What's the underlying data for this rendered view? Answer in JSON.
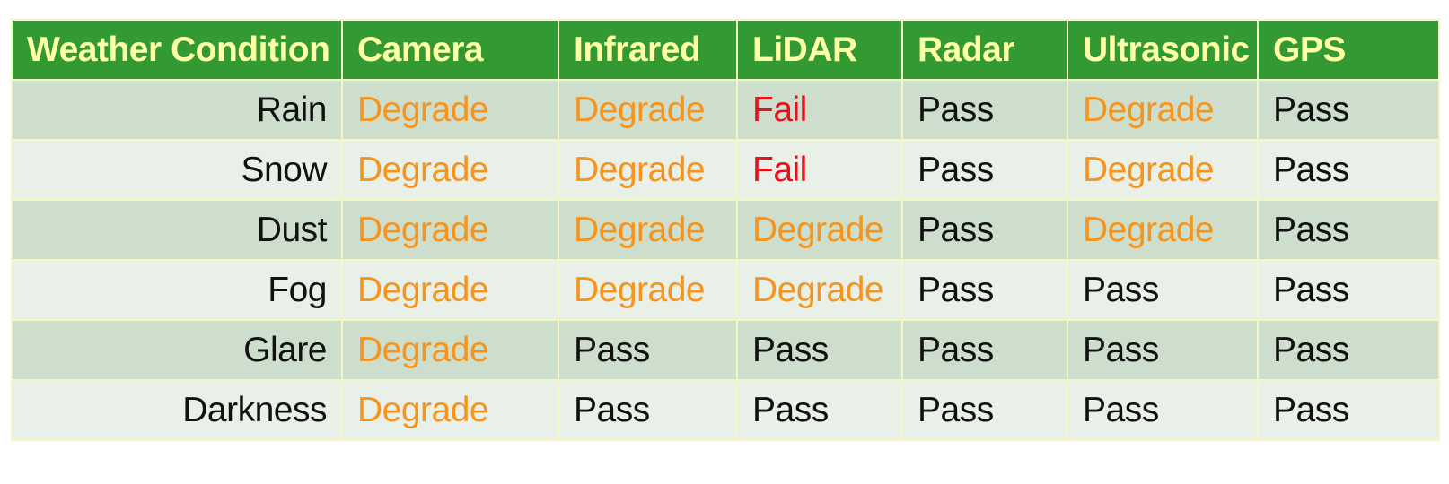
{
  "table": {
    "headers": [
      "Weather Condition",
      "Camera",
      "Infrared",
      "LiDAR",
      "Radar",
      "Ultrasonic",
      "GPS"
    ],
    "rows": [
      {
        "condition": "Rain",
        "values": [
          "Degrade",
          "Degrade",
          "Fail",
          "Pass",
          "Degrade",
          "Pass"
        ]
      },
      {
        "condition": "Snow",
        "values": [
          "Degrade",
          "Degrade",
          "Fail",
          "Pass",
          "Degrade",
          "Pass"
        ]
      },
      {
        "condition": "Dust",
        "values": [
          "Degrade",
          "Degrade",
          "Degrade",
          "Pass",
          "Degrade",
          "Pass"
        ]
      },
      {
        "condition": "Fog",
        "values": [
          "Degrade",
          "Degrade",
          "Degrade",
          "Pass",
          "Pass",
          "Pass"
        ]
      },
      {
        "condition": "Glare",
        "values": [
          "Degrade",
          "Pass",
          "Pass",
          "Pass",
          "Pass",
          "Pass"
        ]
      },
      {
        "condition": "Darkness",
        "values": [
          "Degrade",
          "Pass",
          "Pass",
          "Pass",
          "Pass",
          "Pass"
        ]
      }
    ]
  },
  "colors": {
    "header_bg": "#339933",
    "header_text": "#ffffa6",
    "row_odd": "#cddfcc",
    "row_even": "#e8f0e7",
    "degrade": "#f7941d",
    "fail": "#e8101a",
    "pass": "#111111"
  }
}
